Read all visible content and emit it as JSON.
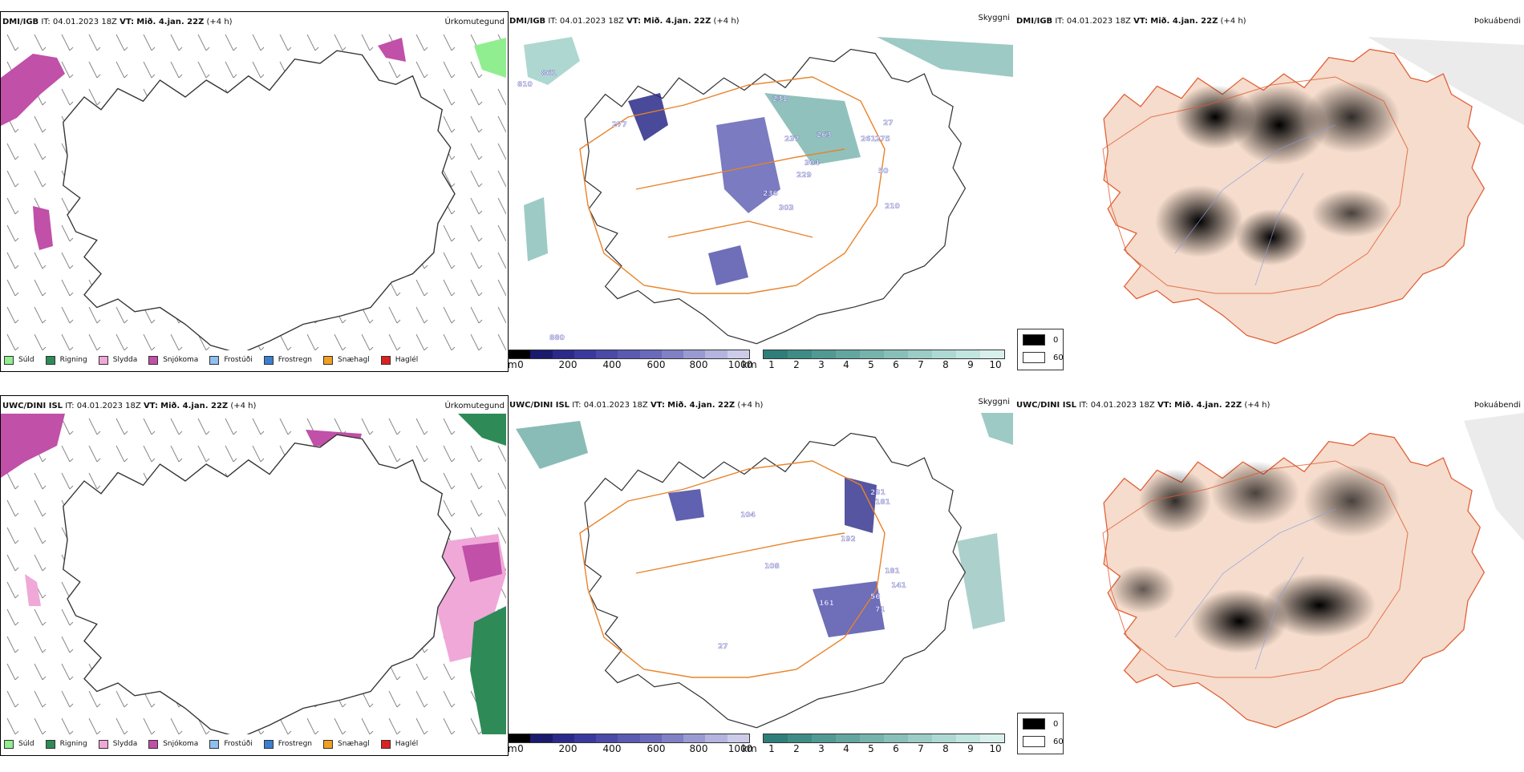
{
  "rows": [
    {
      "model": "DMI/IGB",
      "it_label": "IT:",
      "it_value": "04.01.2023 18Z",
      "vt_label": "VT:",
      "vt_value": "Mið. 4.jan. 22Z",
      "lead": "(+4 h)",
      "titles": {
        "left": "Úrkomutegund",
        "mid": "Skyggni",
        "right": "Þokuábendi"
      }
    },
    {
      "model": "UWC/DINI ISL",
      "it_label": "IT:",
      "it_value": "04.01.2023 18Z",
      "vt_label": "VT:",
      "vt_value": "Mið. 4.jan. 22Z",
      "lead": "(+4 h)",
      "titles": {
        "left": "Úrkomutegund",
        "mid": "Skyggni",
        "right": "Þokuábendi"
      }
    }
  ],
  "precip_legend": [
    {
      "label": "Súld",
      "color": "#90ee90"
    },
    {
      "label": "Rigning",
      "color": "#2e8b57"
    },
    {
      "label": "Slydda",
      "color": "#f0a8d8"
    },
    {
      "label": "Snjókoma",
      "color": "#c050a8"
    },
    {
      "label": "Frostúði",
      "color": "#8ec0f0"
    },
    {
      "label": "Frostregn",
      "color": "#3a7fd0"
    },
    {
      "label": "Snæhagl",
      "color": "#f0a020"
    },
    {
      "label": "Haglél",
      "color": "#e02020"
    }
  ],
  "visibility_m": {
    "unit": "m",
    "ticks": [
      "0",
      "200",
      "400",
      "600",
      "800",
      "1000"
    ],
    "colors": [
      "#000000",
      "#1a1a6e",
      "#2a2a8a",
      "#3a3a9e",
      "#4a4aa8",
      "#5a5ab2",
      "#6a6abc",
      "#8080c6",
      "#9a9ad2",
      "#b4b4de",
      "#ccccea"
    ]
  },
  "visibility_km": {
    "unit": "km",
    "ticks": [
      "1",
      "2",
      "3",
      "4",
      "5",
      "6",
      "7",
      "8",
      "9",
      "10"
    ],
    "colors": [
      "#2e7f7a",
      "#3f8c86",
      "#519993",
      "#63a69f",
      "#75b3ac",
      "#88c0b9",
      "#9bcdc6",
      "#aed9d3",
      "#c2e5e0",
      "#d8f0ec"
    ]
  },
  "fog_legend": [
    {
      "label": "0",
      "color": "#000000"
    },
    {
      "label": "60",
      "color": "#ffffff"
    }
  ],
  "map_labels": {
    "row0": [
      "810",
      "861",
      "277",
      "231",
      "237",
      "261",
      "275",
      "263",
      "304",
      "229",
      "236",
      "50",
      "27",
      "210",
      "303",
      "880"
    ],
    "row1": [
      "231",
      "181",
      "104",
      "108",
      "192",
      "181",
      "141",
      "56",
      "161",
      "71",
      "27"
    ]
  }
}
